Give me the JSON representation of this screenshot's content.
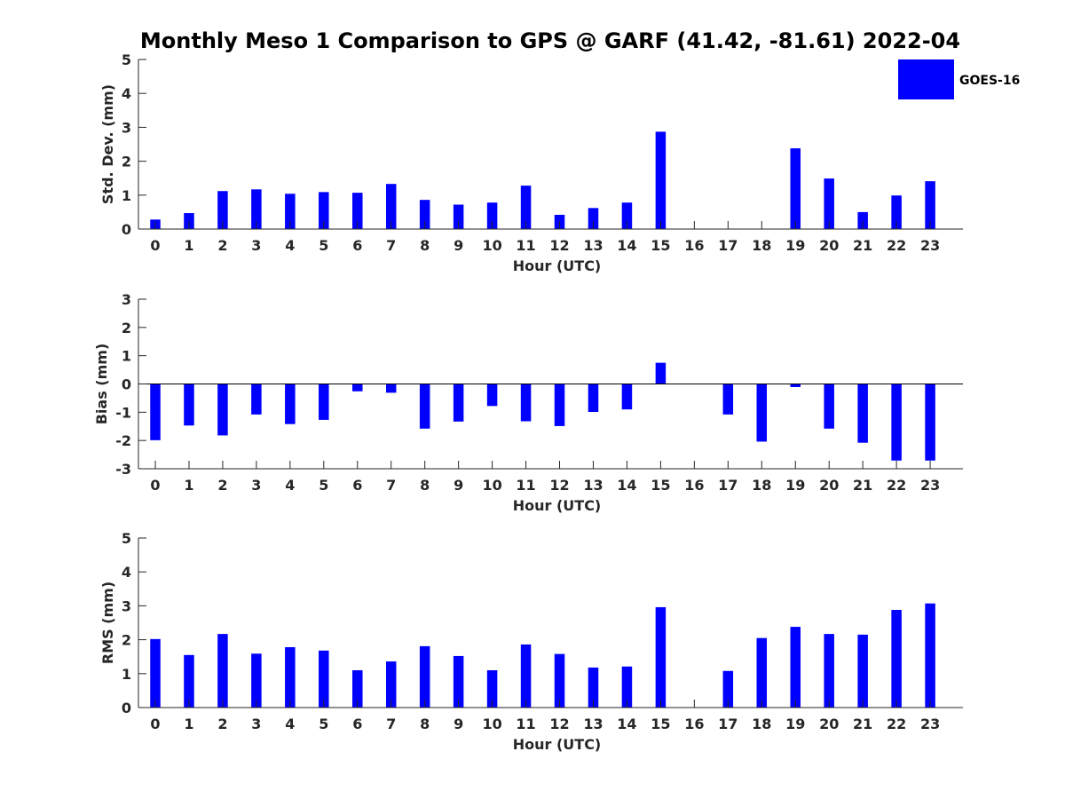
{
  "title": "Monthly Meso 1 Comparison to GPS @ GARF (41.42, -81.61) 2022-04",
  "legend": {
    "label": "GOES-16",
    "position": "top-right"
  },
  "colors": {
    "bar": "#0000ff",
    "axis": "#262626"
  },
  "chart_data": [
    {
      "type": "bar",
      "xlabel": "Hour (UTC)",
      "ylabel": "Std. Dev. (mm)",
      "ylim": [
        0,
        5
      ],
      "yticks": [
        0,
        1,
        2,
        3,
        4,
        5
      ],
      "categories": [
        "0",
        "1",
        "2",
        "3",
        "4",
        "5",
        "6",
        "7",
        "8",
        "9",
        "10",
        "11",
        "12",
        "13",
        "14",
        "15",
        "16",
        "17",
        "18",
        "19",
        "20",
        "21",
        "22",
        "23"
      ],
      "series": [
        {
          "name": "GOES-16",
          "values": [
            0.28,
            0.47,
            1.12,
            1.17,
            1.04,
            1.09,
            1.07,
            1.33,
            0.86,
            0.72,
            0.78,
            1.28,
            0.42,
            0.62,
            0.78,
            2.87,
            0,
            0,
            0,
            2.38,
            1.49,
            0.5,
            0.99,
            1.41
          ]
        }
      ]
    },
    {
      "type": "bar",
      "xlabel": "Hour (UTC)",
      "ylabel": "Bias (mm)",
      "ylim": [
        -3,
        3
      ],
      "yticks": [
        -3,
        -2,
        -1,
        0,
        1,
        2,
        3
      ],
      "categories": [
        "0",
        "1",
        "2",
        "3",
        "4",
        "5",
        "6",
        "7",
        "8",
        "9",
        "10",
        "11",
        "12",
        "13",
        "14",
        "15",
        "16",
        "17",
        "18",
        "19",
        "20",
        "21",
        "22",
        "23"
      ],
      "series": [
        {
          "name": "GOES-16",
          "values": [
            -1.99,
            -1.47,
            -1.82,
            -1.08,
            -1.42,
            -1.27,
            -0.26,
            -0.31,
            -1.58,
            -1.33,
            -0.78,
            -1.32,
            -1.49,
            -0.99,
            -0.9,
            0.75,
            0,
            -1.08,
            -2.04,
            -0.11,
            -1.58,
            -2.08,
            -2.71,
            -2.71
          ]
        }
      ]
    },
    {
      "type": "bar",
      "xlabel": "Hour (UTC)",
      "ylabel": "RMS (mm)",
      "ylim": [
        0,
        5
      ],
      "yticks": [
        0,
        1,
        2,
        3,
        4,
        5
      ],
      "categories": [
        "0",
        "1",
        "2",
        "3",
        "4",
        "5",
        "6",
        "7",
        "8",
        "9",
        "10",
        "11",
        "12",
        "13",
        "14",
        "15",
        "16",
        "17",
        "18",
        "19",
        "20",
        "21",
        "22",
        "23"
      ],
      "series": [
        {
          "name": "GOES-16",
          "values": [
            2.02,
            1.55,
            2.17,
            1.59,
            1.78,
            1.68,
            1.1,
            1.36,
            1.81,
            1.52,
            1.1,
            1.86,
            1.58,
            1.18,
            1.21,
            2.96,
            0,
            1.08,
            2.05,
            2.38,
            2.17,
            2.15,
            2.88,
            3.07
          ]
        }
      ]
    }
  ]
}
